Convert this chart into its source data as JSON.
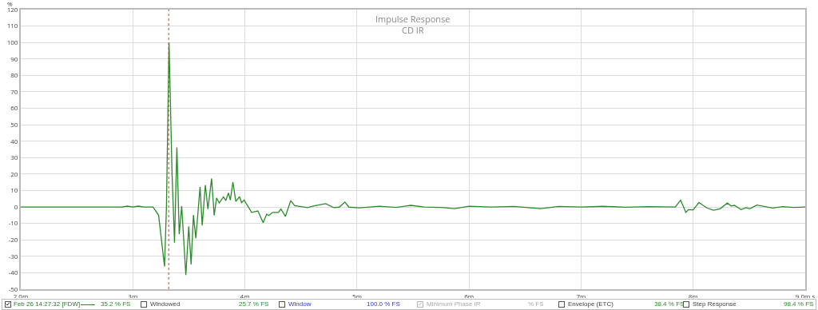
{
  "chart_data": {
    "type": "line",
    "title": "Impulse Response",
    "subtitle": "CD IR",
    "ylabel": "%",
    "x": [
      2.0,
      2.9,
      2.95,
      3.0,
      3.05,
      3.1,
      3.18,
      3.23,
      3.283,
      3.3,
      3.323,
      3.35,
      3.372,
      3.393,
      3.414,
      3.436,
      3.473,
      3.499,
      3.52,
      3.541,
      3.562,
      3.6,
      3.619,
      3.647,
      3.67,
      3.703,
      3.726,
      3.747,
      3.771,
      3.809,
      3.83,
      3.853,
      3.87,
      3.893,
      3.919,
      3.952,
      3.97,
      3.994,
      4.06,
      4.116,
      4.163,
      4.194,
      4.215,
      4.247,
      4.299,
      4.322,
      4.362,
      4.409,
      4.444,
      4.557,
      4.627,
      4.721,
      4.792,
      4.843,
      4.892,
      4.928,
      5.026,
      5.2,
      5.35,
      5.48,
      5.6,
      5.75,
      5.87,
      6.0,
      6.2,
      6.4,
      6.64,
      6.8,
      7.0,
      7.2,
      7.4,
      7.6,
      7.841,
      7.888,
      7.935,
      7.958,
      8.0,
      8.052,
      8.122,
      8.181,
      8.24,
      8.305,
      8.339,
      8.369,
      8.427,
      8.474,
      8.505,
      8.568,
      8.709,
      8.8,
      8.897,
      9.0
    ],
    "series": [
      {
        "name": "Feb 26 14:27:32 [FDW]",
        "color": "#2a8a2a",
        "values": [
          0,
          0,
          0.5,
          0,
          0.5,
          0,
          0,
          -5,
          -36.2,
          0,
          100,
          20,
          -21.7,
          36.2,
          -16.5,
          0.5,
          -41.4,
          -11.8,
          -34.9,
          -4.9,
          -19,
          12.1,
          -11.2,
          13.4,
          -1.3,
          17.3,
          -5.2,
          5.5,
          2.4,
          6.1,
          3.9,
          8.6,
          4.2,
          15.2,
          3.4,
          6.3,
          2.7,
          4.2,
          -3.3,
          -2.4,
          -9.6,
          -4.4,
          -5.2,
          -3.3,
          -3.3,
          -1.3,
          -5.7,
          3.9,
          0.8,
          -0.4,
          0.8,
          2,
          -0.4,
          -0.1,
          3,
          -0.1,
          -0.5,
          0.5,
          -0.3,
          1,
          0,
          -0.3,
          -1,
          0.5,
          0,
          0.3,
          -1,
          0.3,
          0,
          0.4,
          -0.2,
          0.2,
          0,
          4.2,
          -3.3,
          -1.6,
          -1.7,
          2.7,
          -0.6,
          -2,
          -1.1,
          2.4,
          0.6,
          1,
          -1.6,
          -0.4,
          -1.1,
          1.2,
          -0.6,
          0.2,
          -0.3,
          0
        ]
      }
    ],
    "xlim": [
      2.0,
      9.0
    ],
    "xticks": [
      {
        "value": 2,
        "label": "2.0m"
      },
      {
        "value": 3,
        "label": "3m"
      },
      {
        "value": 4,
        "label": "4m"
      },
      {
        "value": 5,
        "label": "5m"
      },
      {
        "value": 6,
        "label": "6m"
      },
      {
        "value": 7,
        "label": "7m"
      },
      {
        "value": 8,
        "label": "8m"
      },
      {
        "value": 9,
        "label": "9.0m s"
      }
    ],
    "ylim": [
      -50,
      120
    ],
    "yticks": [
      -50,
      -40,
      -30,
      -20,
      -10,
      0,
      10,
      20,
      30,
      40,
      50,
      60,
      70,
      80,
      90,
      100,
      110,
      120
    ],
    "grid": true,
    "legend": "bottom",
    "line_style": "solid",
    "ref_lines": [
      {
        "axis": "x",
        "value": 3.32,
        "color": "#e03030",
        "line_style": "dotted"
      }
    ],
    "annotations": [
      "35.2 % FS",
      "Windowed",
      "25.7 % FS",
      "Window",
      "100.0 % FS",
      "Minimum Phase IR",
      "% FS",
      "Envelope (ETC)",
      "38.4 % FS",
      "Step Response",
      "98.4 % FS"
    ]
  }
}
